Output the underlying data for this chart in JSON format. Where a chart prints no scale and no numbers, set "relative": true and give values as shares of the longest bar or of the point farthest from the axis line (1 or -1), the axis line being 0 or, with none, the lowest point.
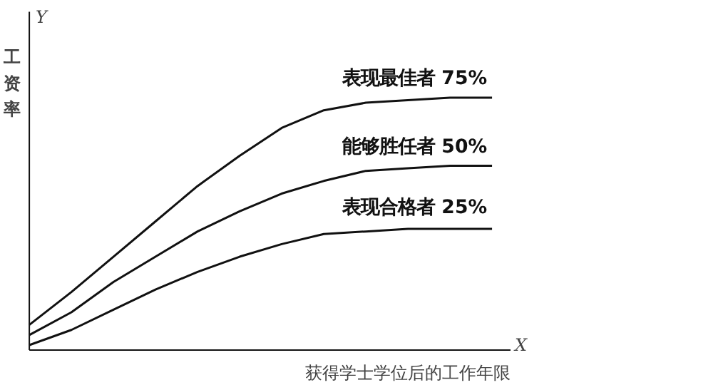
{
  "chart_data": {
    "type": "line",
    "relative": true,
    "xlabel": "获得学士学位后的工作年限",
    "ylabel": "工资率",
    "annotations": [
      "Y",
      "X"
    ],
    "categories": [
      null,
      null,
      null,
      null,
      null,
      null,
      null,
      null,
      null,
      null,
      null,
      null
    ],
    "legend": false,
    "grid": false,
    "marker": "none",
    "line_style": "solid",
    "series": [
      {
        "name": "表现最佳者 75%",
        "color": "#111111",
        "values": [
          0.1,
          0.23,
          0.37,
          0.51,
          0.65,
          0.77,
          0.88,
          0.95,
          0.98,
          0.99,
          1,
          1
        ]
      },
      {
        "name": "能够胜任者 50%",
        "color": "#111111",
        "values": [
          0.06,
          0.15,
          0.27,
          0.37,
          0.47,
          0.55,
          0.62,
          0.67,
          0.71,
          0.72,
          0.73,
          0.73
        ]
      },
      {
        "name": "表现合格者 25%",
        "color": "#111111",
        "values": [
          0.02,
          0.08,
          0.16,
          0.24,
          0.31,
          0.37,
          0.42,
          0.46,
          0.47,
          0.48,
          0.48,
          0.48
        ]
      }
    ]
  }
}
